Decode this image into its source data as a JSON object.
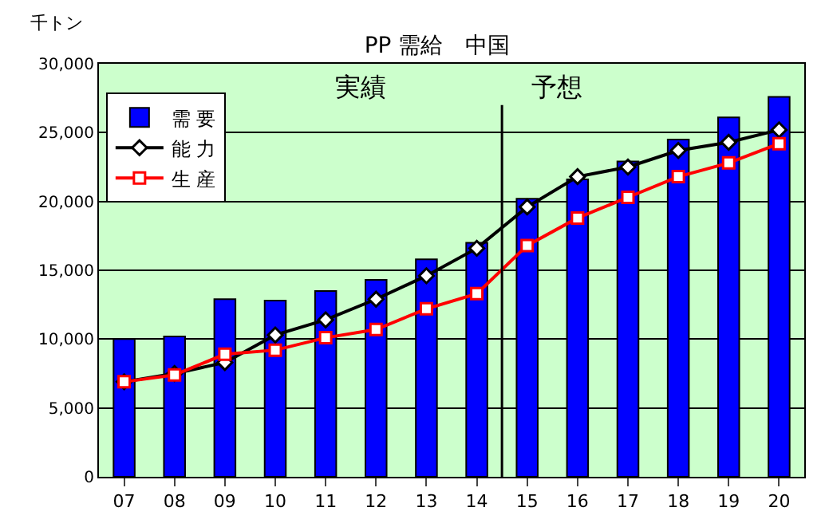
{
  "chart_data": {
    "type": "bar",
    "title": "PP 需給　中国",
    "ylabel": "千トン",
    "categories": [
      "07",
      "08",
      "09",
      "10",
      "11",
      "12",
      "13",
      "14",
      "15",
      "16",
      "17",
      "18",
      "19",
      "20"
    ],
    "series": [
      {
        "name": "需 要",
        "color": "#0000ff",
        "values": [
          10000,
          10200,
          12900,
          12800,
          13500,
          14300,
          15800,
          17000,
          20200,
          21600,
          22900,
          24500,
          26100,
          27600
        ]
      },
      {
        "name": "能 力",
        "type": "line",
        "color": "#000000",
        "marker": "diamond",
        "values": [
          6900,
          7500,
          8300,
          10300,
          11400,
          12900,
          14600,
          16600,
          19600,
          21800,
          22500,
          23700,
          24300,
          25200
        ]
      },
      {
        "name": "生 産",
        "type": "line",
        "color": "#ff0000",
        "marker": "square",
        "values": [
          6900,
          7400,
          8900,
          9200,
          10100,
          10700,
          12200,
          13300,
          16800,
          18800,
          20300,
          21800,
          22800,
          24200
        ]
      }
    ],
    "annotations": [
      "実績",
      "予想"
    ],
    "ref_lines": [
      {
        "axis": "x",
        "value": "15",
        "color": "#000000"
      }
    ],
    "ylim": [
      0,
      30000
    ],
    "yticks": [
      {
        "value": 0,
        "label": "0"
      },
      {
        "value": 5000,
        "label": "5,000"
      },
      {
        "value": 10000,
        "label": "10,000"
      },
      {
        "value": 15000,
        "label": "15,000"
      },
      {
        "value": 20000,
        "label": "20,000"
      },
      {
        "value": 25000,
        "label": "25,000"
      },
      {
        "value": 30000,
        "label": "30,000"
      }
    ],
    "grid": "y",
    "legend": "top left"
  }
}
